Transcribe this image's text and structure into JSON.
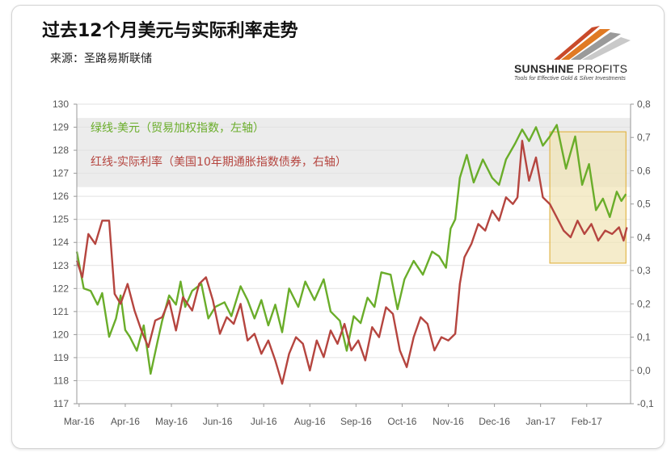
{
  "title": "过去12个月美元与实际利率走势",
  "source": "来源：圣路易斯联储",
  "logo": {
    "name_bold": "SUNSHINE",
    "name_light": "PROFITS",
    "tagline": "Tools for Effective Gold & Silver Investments"
  },
  "colors": {
    "usd": "#6aad2a",
    "rate": "#b5453f",
    "highlight_fill": "#f1e4b5",
    "highlight_stroke": "#e2b64a",
    "band": "#ececec"
  },
  "chart_data": {
    "type": "line",
    "title": "过去12个月美元与实际利率走势",
    "x_categories": [
      "Mar-16",
      "Apr-16",
      "May-16",
      "Jun-16",
      "Jul-16",
      "Aug-16",
      "Sep-16",
      "Oct-16",
      "Nov-16",
      "Dec-16",
      "Jan-17",
      "Feb-17"
    ],
    "y_left": {
      "min": 117,
      "max": 130,
      "ticks": [
        "117",
        "118",
        "119",
        "120",
        "121",
        "122",
        "123",
        "124",
        "125",
        "126",
        "127",
        "128",
        "129",
        "130"
      ]
    },
    "y_right": {
      "min": -0.1,
      "max": 0.8,
      "ticks": [
        "-0,1",
        "0,0",
        "0,1",
        "0,2",
        "0,3",
        "0,4",
        "0,5",
        "0,6",
        "0,7",
        "0,8"
      ]
    },
    "highlight": {
      "x_start": 10.25,
      "x_end": 11.9,
      "y_left_low": 123.1,
      "y_left_high": 128.8
    },
    "series": [
      {
        "name": "绿线-美元（贸易加权指数，左轴）",
        "axis": "left",
        "x": [
          0.0,
          0.15,
          0.3,
          0.45,
          0.55,
          0.7,
          0.85,
          0.95,
          1.05,
          1.15,
          1.3,
          1.45,
          1.6,
          1.75,
          1.85,
          2.0,
          2.15,
          2.25,
          2.35,
          2.5,
          2.7,
          2.85,
          3.0,
          3.2,
          3.35,
          3.55,
          3.7,
          3.85,
          4.0,
          4.15,
          4.3,
          4.45,
          4.6,
          4.8,
          4.95,
          5.15,
          5.35,
          5.5,
          5.7,
          5.85,
          6.0,
          6.15,
          6.3,
          6.45,
          6.6,
          6.8,
          6.95,
          7.1,
          7.3,
          7.5,
          7.7,
          7.85,
          8.0,
          8.1,
          8.2,
          8.3,
          8.45,
          8.6,
          8.8,
          9.0,
          9.15,
          9.3,
          9.5,
          9.65,
          9.8,
          9.95,
          10.1,
          10.25,
          10.4,
          10.6,
          10.8,
          10.95,
          11.1,
          11.25,
          11.4,
          11.55,
          11.7,
          11.8,
          11.9
        ],
        "values": [
          123.6,
          122.0,
          121.9,
          121.3,
          121.8,
          119.9,
          120.7,
          121.7,
          120.2,
          119.9,
          119.3,
          120.4,
          118.3,
          119.7,
          120.6,
          121.7,
          121.3,
          122.3,
          121.2,
          121.9,
          122.2,
          120.7,
          121.2,
          121.4,
          120.8,
          122.1,
          121.5,
          120.7,
          121.5,
          120.4,
          121.3,
          120.1,
          122.0,
          121.2,
          122.3,
          121.5,
          122.4,
          121.0,
          120.6,
          119.3,
          120.8,
          120.5,
          121.6,
          121.2,
          122.7,
          122.6,
          121.1,
          122.4,
          123.2,
          122.6,
          123.6,
          123.4,
          122.9,
          124.6,
          125.0,
          126.8,
          127.8,
          126.6,
          127.6,
          126.8,
          126.5,
          127.6,
          128.3,
          128.9,
          128.4,
          129.0,
          128.2,
          128.6,
          129.1,
          127.2,
          128.6,
          126.5,
          127.4,
          125.4,
          125.9,
          125.1,
          126.2,
          125.8,
          126.1
        ]
      },
      {
        "name": "红线-实际利率（美国10年期通胀指数债券，右轴）",
        "axis": "right",
        "x": [
          0.0,
          0.12,
          0.25,
          0.4,
          0.55,
          0.7,
          0.82,
          0.95,
          1.1,
          1.25,
          1.4,
          1.55,
          1.7,
          1.85,
          2.0,
          2.15,
          2.3,
          2.5,
          2.65,
          2.8,
          2.95,
          3.1,
          3.25,
          3.4,
          3.55,
          3.7,
          3.85,
          4.0,
          4.15,
          4.3,
          4.45,
          4.6,
          4.75,
          4.9,
          5.05,
          5.2,
          5.35,
          5.5,
          5.65,
          5.8,
          5.95,
          6.1,
          6.25,
          6.4,
          6.55,
          6.7,
          6.85,
          7.0,
          7.15,
          7.3,
          7.45,
          7.6,
          7.75,
          7.9,
          8.05,
          8.2,
          8.3,
          8.4,
          8.55,
          8.7,
          8.85,
          9.0,
          9.15,
          9.3,
          9.45,
          9.55,
          9.65,
          9.8,
          9.95,
          10.1,
          10.25,
          10.4,
          10.55,
          10.7,
          10.85,
          11.0,
          11.15,
          11.3,
          11.45,
          11.6,
          11.75,
          11.85,
          11.92
        ],
        "values": [
          0.33,
          0.28,
          0.41,
          0.38,
          0.45,
          0.45,
          0.23,
          0.2,
          0.26,
          0.18,
          0.12,
          0.07,
          0.15,
          0.16,
          0.21,
          0.12,
          0.22,
          0.18,
          0.26,
          0.28,
          0.21,
          0.11,
          0.16,
          0.14,
          0.2,
          0.09,
          0.11,
          0.05,
          0.09,
          0.03,
          -0.04,
          0.05,
          0.1,
          0.08,
          0.0,
          0.09,
          0.04,
          0.12,
          0.08,
          0.14,
          0.06,
          0.09,
          0.03,
          0.13,
          0.1,
          0.19,
          0.17,
          0.06,
          0.01,
          0.1,
          0.16,
          0.14,
          0.06,
          0.1,
          0.09,
          0.11,
          0.26,
          0.34,
          0.38,
          0.44,
          0.42,
          0.48,
          0.45,
          0.52,
          0.5,
          0.52,
          0.69,
          0.57,
          0.64,
          0.52,
          0.5,
          0.46,
          0.42,
          0.4,
          0.45,
          0.41,
          0.44,
          0.39,
          0.42,
          0.41,
          0.43,
          0.39,
          0.43
        ]
      }
    ]
  }
}
